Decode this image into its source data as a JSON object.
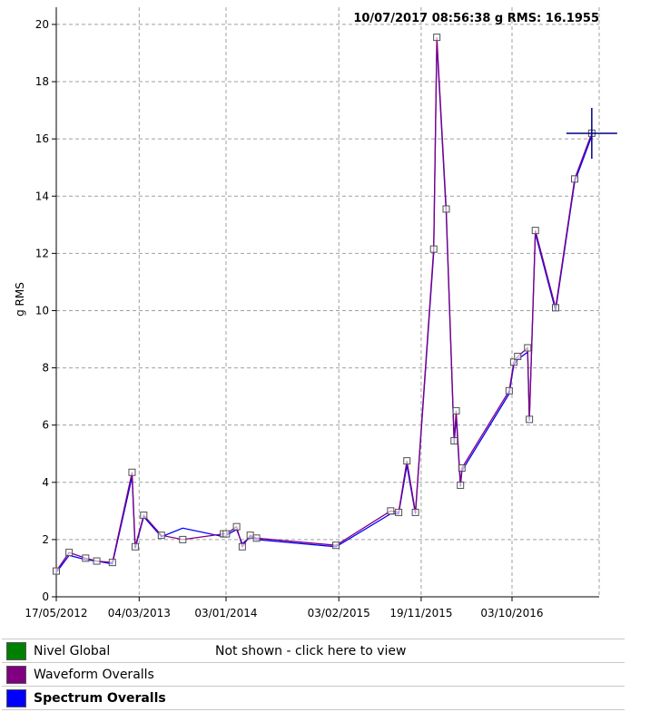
{
  "chart_data": {
    "type": "line",
    "title": "",
    "readout": "10/07/2017 08:56:38 g RMS: 16.1955",
    "ylabel": "g RMS",
    "xlabel": "",
    "ylim": [
      0,
      20.6
    ],
    "yticks": [
      0,
      2,
      4,
      6,
      8,
      10,
      12,
      14,
      16,
      18,
      20
    ],
    "xlim": [
      "2012-05-17",
      "2017-08-05"
    ],
    "xtick_labels": [
      {
        "date": "2012-05-17",
        "label": "17/05/2012"
      },
      {
        "date": "2013-03-04",
        "label": "04/03/2013"
      },
      {
        "date": "2014-01-03",
        "label": "03/01/2014"
      },
      {
        "date": "2015-02-03",
        "label": "03/02/2015"
      },
      {
        "date": "2015-11-19",
        "label": "19/11/2015"
      },
      {
        "date": "2016-10-03",
        "label": "03/10/2016"
      }
    ],
    "grid": true,
    "cursor": {
      "date": "2017-07-10",
      "value": 16.1955
    },
    "series": [
      {
        "name": "Waveform Overalls",
        "color": "#800080",
        "points": [
          {
            "date": "2012-05-17",
            "value": 0.9
          },
          {
            "date": "2012-07-01",
            "value": 1.55
          },
          {
            "date": "2012-08-28",
            "value": 1.35
          },
          {
            "date": "2012-10-06",
            "value": 1.25
          },
          {
            "date": "2012-11-30",
            "value": 1.2
          },
          {
            "date": "2013-02-07",
            "value": 4.35
          },
          {
            "date": "2013-02-18",
            "value": 1.75
          },
          {
            "date": "2013-03-20",
            "value": 2.85
          },
          {
            "date": "2013-05-21",
            "value": 2.15
          },
          {
            "date": "2013-08-04",
            "value": 2.0
          },
          {
            "date": "2013-12-25",
            "value": 2.2
          },
          {
            "date": "2014-01-04",
            "value": 2.2
          },
          {
            "date": "2014-02-09",
            "value": 2.45
          },
          {
            "date": "2014-02-29",
            "value": 1.75
          },
          {
            "date": "2014-03-29",
            "value": 2.15
          },
          {
            "date": "2014-04-20",
            "value": 2.05
          },
          {
            "date": "2015-01-24",
            "value": 1.8
          },
          {
            "date": "2015-08-04",
            "value": 3.0
          },
          {
            "date": "2015-09-01",
            "value": 2.95
          },
          {
            "date": "2015-09-30",
            "value": 4.75
          },
          {
            "date": "2015-10-30",
            "value": 2.95
          },
          {
            "date": "2016-01-02",
            "value": 12.15
          },
          {
            "date": "2016-01-13",
            "value": 19.55
          },
          {
            "date": "2016-02-15",
            "value": 13.55
          },
          {
            "date": "2016-03-14",
            "value": 5.45
          },
          {
            "date": "2016-03-21",
            "value": 6.5
          },
          {
            "date": "2016-04-05",
            "value": 3.9
          },
          {
            "date": "2016-04-10",
            "value": 4.5
          },
          {
            "date": "2016-09-23",
            "value": 7.2
          },
          {
            "date": "2016-10-09",
            "value": 8.2
          },
          {
            "date": "2016-10-23",
            "value": 8.4
          },
          {
            "date": "2016-11-27",
            "value": 8.7
          },
          {
            "date": "2016-12-03",
            "value": 6.2
          },
          {
            "date": "2016-12-24",
            "value": 12.8
          },
          {
            "date": "2017-03-05",
            "value": 10.1
          },
          {
            "date": "2017-05-11",
            "value": 14.6
          },
          {
            "date": "2017-07-10",
            "value": 16.2
          }
        ]
      },
      {
        "name": "Spectrum Overalls",
        "color": "#0000ff",
        "points": [
          {
            "date": "2012-05-17",
            "value": 0.85
          },
          {
            "date": "2012-07-01",
            "value": 1.45
          },
          {
            "date": "2012-08-28",
            "value": 1.3
          },
          {
            "date": "2012-10-06",
            "value": 1.25
          },
          {
            "date": "2012-11-30",
            "value": 1.15
          },
          {
            "date": "2013-02-07",
            "value": 4.2
          },
          {
            "date": "2013-02-18",
            "value": 1.7
          },
          {
            "date": "2013-03-20",
            "value": 2.8
          },
          {
            "date": "2013-05-21",
            "value": 2.1
          },
          {
            "date": "2013-08-04",
            "value": 2.4
          },
          {
            "date": "2013-12-25",
            "value": 2.1
          },
          {
            "date": "2014-01-04",
            "value": 2.15
          },
          {
            "date": "2014-02-09",
            "value": 2.35
          },
          {
            "date": "2014-02-29",
            "value": 1.85
          },
          {
            "date": "2014-03-29",
            "value": 2.1
          },
          {
            "date": "2014-04-20",
            "value": 2.0
          },
          {
            "date": "2015-01-24",
            "value": 1.75
          },
          {
            "date": "2015-08-04",
            "value": 2.9
          },
          {
            "date": "2015-09-01",
            "value": 2.9
          },
          {
            "date": "2015-09-30",
            "value": 4.6
          },
          {
            "date": "2015-10-30",
            "value": 2.9
          },
          {
            "date": "2016-01-02",
            "value": 12.0
          },
          {
            "date": "2016-01-13",
            "value": 19.4
          },
          {
            "date": "2016-02-15",
            "value": 13.4
          },
          {
            "date": "2016-03-14",
            "value": 5.35
          },
          {
            "date": "2016-03-21",
            "value": 6.3
          },
          {
            "date": "2016-04-05",
            "value": 3.85
          },
          {
            "date": "2016-04-10",
            "value": 4.4
          },
          {
            "date": "2016-09-23",
            "value": 7.1
          },
          {
            "date": "2016-10-09",
            "value": 8.1
          },
          {
            "date": "2016-10-23",
            "value": 8.3
          },
          {
            "date": "2016-11-27",
            "value": 8.55
          },
          {
            "date": "2016-12-03",
            "value": 6.15
          },
          {
            "date": "2016-12-24",
            "value": 12.7
          },
          {
            "date": "2017-03-05",
            "value": 10.0
          },
          {
            "date": "2017-05-11",
            "value": 14.5
          },
          {
            "date": "2017-07-10",
            "value": 16.1
          }
        ]
      }
    ]
  },
  "legend": [
    {
      "name": "Nivel Global",
      "color": "#008000",
      "note": "Not shown - click here to view",
      "bold": false
    },
    {
      "name": "Waveform Overalls",
      "color": "#800080",
      "note": "",
      "bold": false
    },
    {
      "name": "Spectrum Overalls",
      "color": "#0000ff",
      "note": "",
      "bold": true
    }
  ]
}
